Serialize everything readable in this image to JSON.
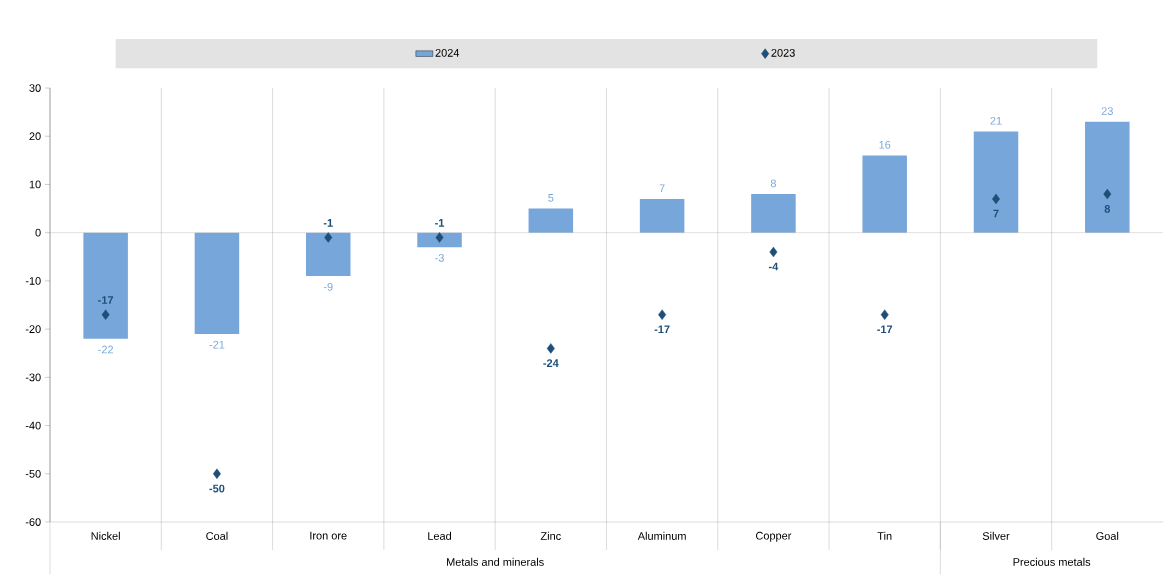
{
  "chart_data": {
    "type": "bar",
    "categories": [
      "Nickel",
      "Coal",
      "Iron ore",
      "Lead",
      "Zinc",
      "Aluminum",
      "Copper",
      "Tin",
      "Silver",
      "Goal"
    ],
    "series": [
      {
        "name": "2024",
        "color": "#77a6da",
        "values": [
          -22,
          -21,
          -9,
          -3,
          5,
          7,
          8,
          16,
          21,
          23
        ]
      },
      {
        "name": "2023",
        "type": "scatter",
        "marker": "diamond",
        "color": "#1f4e79",
        "values": [
          -17,
          -50,
          -1,
          -1,
          -24,
          -17,
          -4,
          -17,
          7,
          8
        ]
      }
    ],
    "ylim": [
      -60,
      30
    ],
    "yticks": [
      -60,
      -50,
      -40,
      -30,
      -20,
      -10,
      0,
      10,
      20,
      30
    ],
    "data_labels": true,
    "legend": "top",
    "grid": false,
    "annotations": [
      "Metals and minerals",
      "Precious metals"
    ]
  }
}
